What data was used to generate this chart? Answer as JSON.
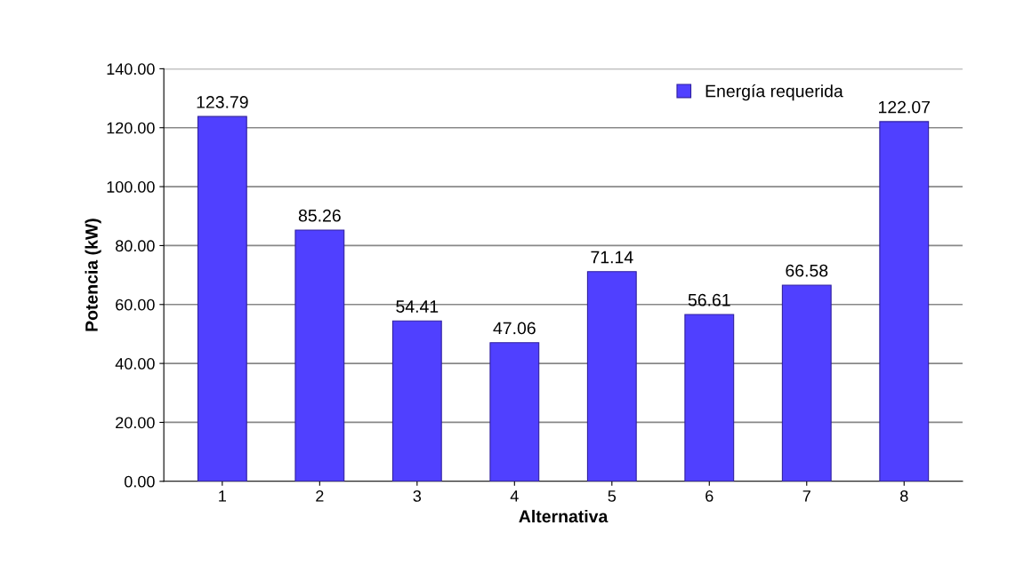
{
  "chart_data": {
    "type": "bar",
    "xlabel": "Alternativa",
    "ylabel": "Potencia (kW)",
    "categories": [
      "1",
      "2",
      "3",
      "4",
      "5",
      "6",
      "7",
      "8"
    ],
    "series": [
      {
        "name": "Energía requerida",
        "color": "#5040ff",
        "values": [
          123.79,
          85.26,
          54.41,
          47.06,
          71.14,
          56.61,
          66.58,
          122.07
        ]
      }
    ],
    "data_labels": true,
    "ylim": [
      0,
      140
    ],
    "yticks": [
      {
        "value": 0,
        "label": "0.00"
      },
      {
        "value": 20,
        "label": "20.00"
      },
      {
        "value": 40,
        "label": "40.00"
      },
      {
        "value": 60,
        "label": "60.00"
      },
      {
        "value": 80,
        "label": "80.00"
      },
      {
        "value": 100,
        "label": "100.00"
      },
      {
        "value": 120,
        "label": "120.00"
      },
      {
        "value": 140,
        "label": "140.00"
      }
    ],
    "grid": "y",
    "legend": "top right"
  }
}
